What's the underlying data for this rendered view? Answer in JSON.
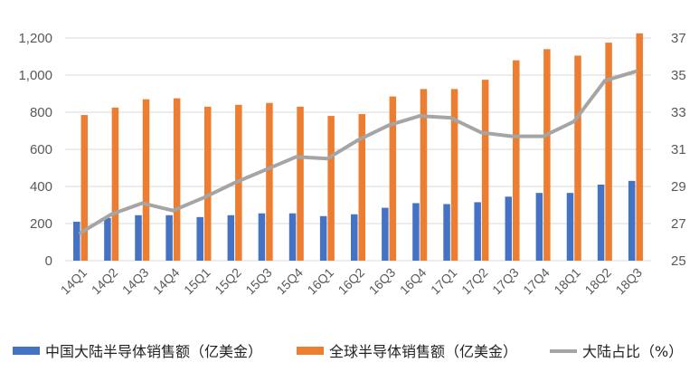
{
  "chart_data": {
    "type": "bar",
    "categories": [
      "14Q1",
      "14Q2",
      "14Q3",
      "14Q4",
      "15Q1",
      "15Q2",
      "15Q3",
      "15Q4",
      "16Q1",
      "16Q2",
      "16Q3",
      "16Q4",
      "17Q1",
      "17Q2",
      "17Q3",
      "17Q4",
      "18Q1",
      "18Q2",
      "18Q3"
    ],
    "series": [
      {
        "name": "中国大陆半导体销售额（亿美金）",
        "type": "bar",
        "axis": "left",
        "color": "#4472C4",
        "values": [
          210,
          230,
          245,
          245,
          235,
          245,
          255,
          255,
          240,
          250,
          285,
          310,
          305,
          315,
          345,
          365,
          365,
          410,
          430
        ]
      },
      {
        "name": "全球半导体销售额（亿美金）",
        "type": "bar",
        "axis": "left",
        "color": "#ED7D31",
        "values": [
          785,
          825,
          870,
          875,
          830,
          840,
          850,
          830,
          780,
          790,
          885,
          925,
          925,
          975,
          1080,
          1140,
          1105,
          1175,
          1225
        ]
      },
      {
        "name": "大陆占比（%）",
        "type": "line",
        "axis": "right",
        "color": "#A5A5A5",
        "values": [
          26.5,
          27.5,
          28.1,
          27.7,
          28.4,
          29.2,
          29.9,
          30.6,
          30.5,
          31.5,
          32.3,
          32.8,
          32.7,
          31.9,
          31.7,
          31.7,
          32.5,
          34.7,
          35.2
        ]
      }
    ],
    "y_left": {
      "min": 0,
      "max": 1200,
      "ticks": [
        "0",
        "200",
        "400",
        "600",
        "800",
        "1,000",
        "1,200"
      ]
    },
    "y_right": {
      "min": 25,
      "max": 37,
      "ticks": [
        "25",
        "27",
        "29",
        "31",
        "33",
        "35",
        "37"
      ]
    },
    "grid": true,
    "legend": "bottom"
  }
}
